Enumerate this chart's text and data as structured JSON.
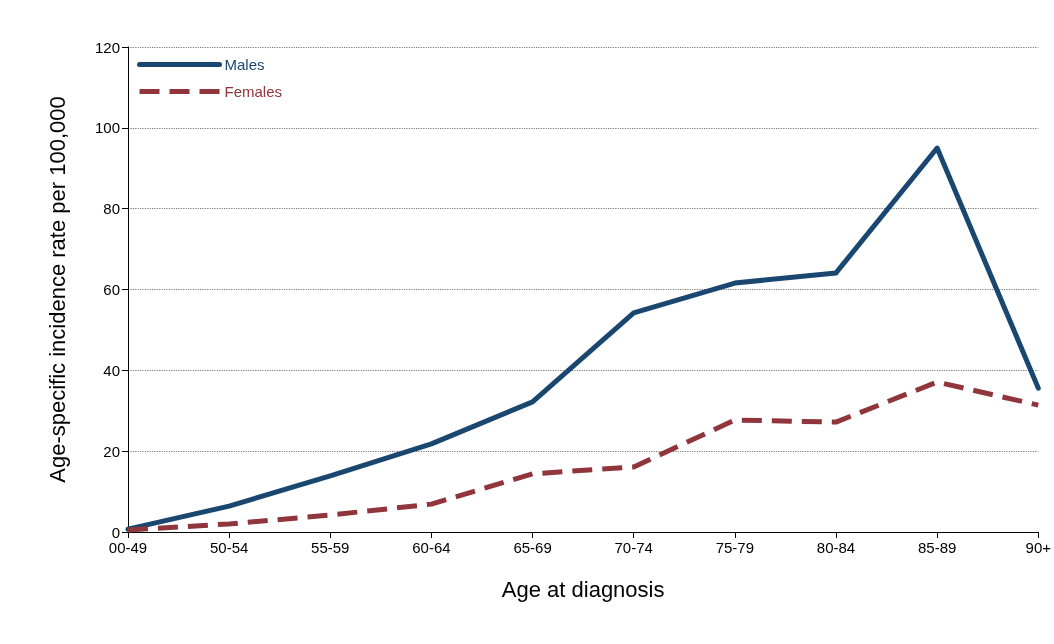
{
  "chart_data": {
    "type": "line",
    "xlabel": "Age at diagnosis",
    "ylabel": "Age-specific incidence rate per 100,000",
    "categories": [
      "00-49",
      "50-54",
      "55-59",
      "60-64",
      "65-69",
      "70-74",
      "75-79",
      "80-84",
      "85-89",
      "90+"
    ],
    "series": [
      {
        "name": "Males",
        "color": "#1a476f",
        "line_style": "solid",
        "values": [
          0.7,
          6.4,
          13.9,
          21.8,
          32.2,
          54.2,
          61.6,
          64.1,
          95,
          35.6
        ]
      },
      {
        "name": "Females",
        "color": "#90353b",
        "line_style": "dashed",
        "values": [
          0.5,
          2,
          4.2,
          6.9,
          14.4,
          16.1,
          27.7,
          27.2,
          37.1,
          31.4
        ]
      }
    ],
    "ylim": [
      0,
      120
    ],
    "yticks": [
      0,
      20,
      40,
      60,
      80,
      100,
      120
    ],
    "grid": "y",
    "legend": "top left",
    "marker": "none"
  }
}
